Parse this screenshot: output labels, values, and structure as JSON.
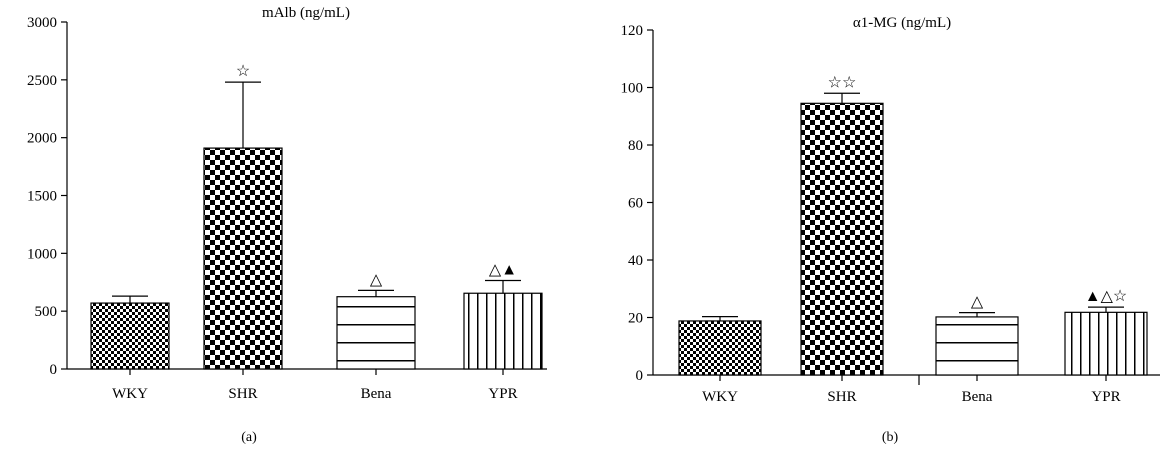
{
  "chart_data": [
    {
      "type": "bar",
      "panel_label": "(a)",
      "title": "mAlb (ng/mL)",
      "categories": [
        "WKY",
        "SHR",
        "Bena",
        "YPR"
      ],
      "values": [
        570,
        1910,
        625,
        655
      ],
      "errors": [
        60,
        570,
        55,
        110
      ],
      "annotations": [
        "",
        "☆",
        "△",
        "△▲"
      ],
      "patterns": [
        "checker-small",
        "checker-large",
        "horizontal-lines",
        "vertical-lines"
      ],
      "ylim": [
        0,
        3000
      ],
      "yticks": [
        0,
        500,
        1000,
        1500,
        2000,
        2500,
        3000
      ],
      "xlabel": "",
      "ylabel": ""
    },
    {
      "type": "bar",
      "panel_label": "(b)",
      "title": "α1-MG (ng/mL)",
      "categories": [
        "WKY",
        "SHR",
        "Bena",
        "YPR"
      ],
      "values": [
        18.8,
        94.5,
        20.2,
        21.8
      ],
      "errors": [
        1.5,
        3.5,
        1.5,
        1.8
      ],
      "annotations": [
        "",
        "☆☆",
        "△",
        "▲△☆"
      ],
      "patterns": [
        "checker-small",
        "checker-large",
        "horizontal-lines",
        "vertical-lines"
      ],
      "ylim": [
        0,
        120
      ],
      "yticks": [
        0,
        20,
        40,
        60,
        80,
        100,
        120
      ],
      "xlabel": "",
      "ylabel": ""
    }
  ]
}
